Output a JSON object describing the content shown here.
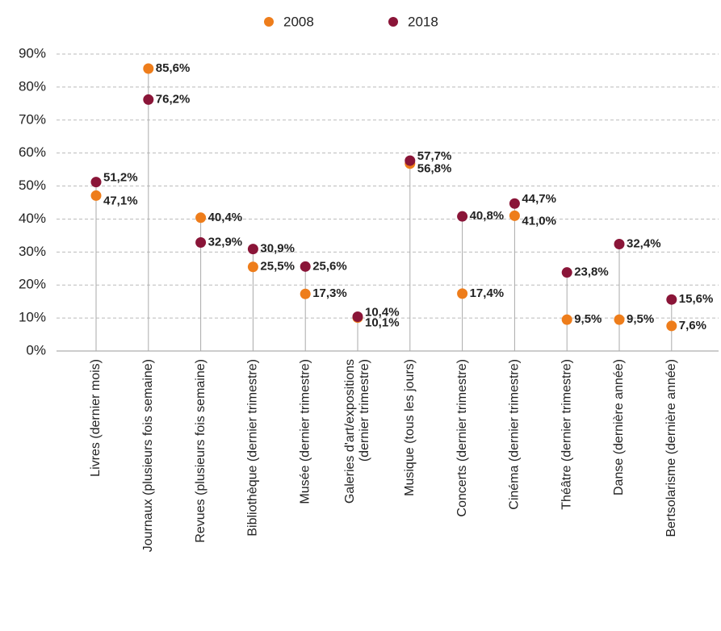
{
  "chart_data": {
    "type": "dot",
    "categories": [
      "Livres (dernier mois)",
      "Journaux (plusieurs fois semaine)",
      "Revues (plusieurs fois semaine)",
      "Bibliothèque (dernier trimestre)",
      "Musée (dernier trimestre)",
      "Galeries d'art/expositions\n(dernier trimestre)",
      "Musique (tous les jours)",
      "Concerts (dernier trimestre)",
      "Cinéma (dernier trimestre)",
      "Théâtre (dernier trimestre)",
      "Danse (dernière année)",
      "Bertsolarisme (dernière année)"
    ],
    "series": [
      {
        "name": "2008",
        "color": "#ee7d1b",
        "values": [
          47.1,
          85.6,
          40.4,
          25.5,
          17.3,
          10.1,
          56.8,
          17.4,
          41.0,
          9.5,
          9.5,
          7.6
        ],
        "value_labels": [
          "47,1%",
          "85,6%",
          "40,4%",
          "25,5%",
          "17,3%",
          "10,1%",
          "56,8%",
          "17,4%",
          "41,0%",
          "9,5%",
          "9,5%",
          "7,6%"
        ]
      },
      {
        "name": "2018",
        "color": "#8a1538",
        "values": [
          51.2,
          76.2,
          32.9,
          30.9,
          25.6,
          10.4,
          57.7,
          40.8,
          44.7,
          23.8,
          32.4,
          15.6
        ],
        "value_labels": [
          "51,2%",
          "76,2%",
          "32,9%",
          "30,9%",
          "25,6%",
          "10,4%",
          "57,7%",
          "40,8%",
          "44,7%",
          "23,8%",
          "32,4%",
          "15,6%"
        ]
      }
    ],
    "ylim": [
      0,
      90
    ],
    "yticks": [
      {
        "value": 0,
        "label": "0%"
      },
      {
        "value": 10,
        "label": "10%"
      },
      {
        "value": 20,
        "label": "20%"
      },
      {
        "value": 30,
        "label": "30%"
      },
      {
        "value": 40,
        "label": "40%"
      },
      {
        "value": 50,
        "label": "50%"
      },
      {
        "value": 60,
        "label": "60%"
      },
      {
        "value": 70,
        "label": "70%"
      },
      {
        "value": 80,
        "label": "80%"
      },
      {
        "value": 90,
        "label": "90%"
      }
    ],
    "grid": true,
    "legend": "top"
  }
}
